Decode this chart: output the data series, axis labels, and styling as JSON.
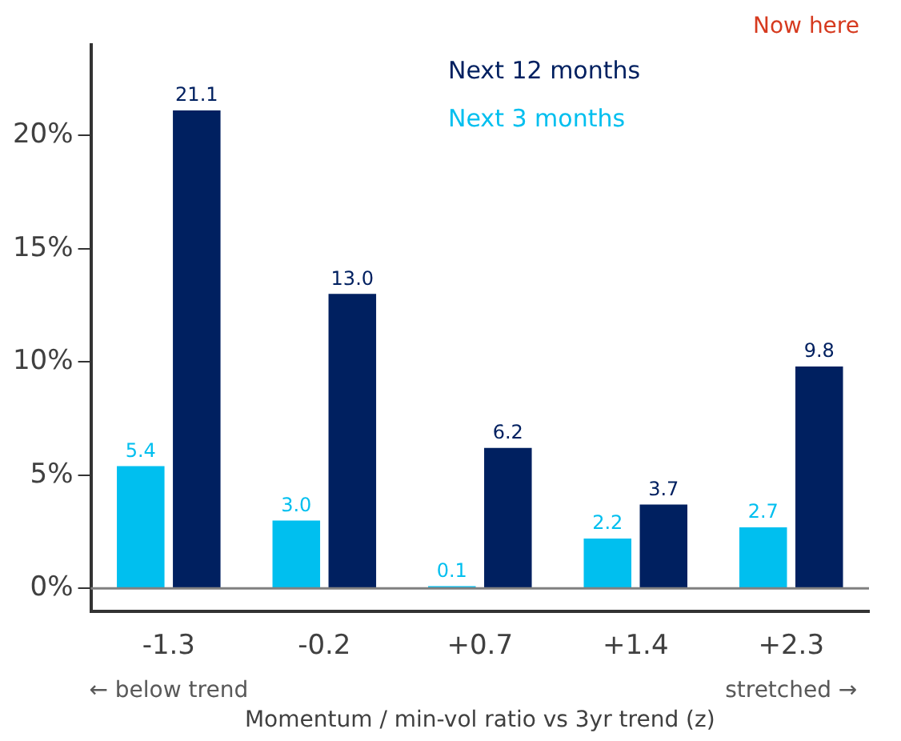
{
  "chart_data": {
    "type": "bar",
    "xlabel": "Momentum / min-vol ratio vs 3yr trend (z)",
    "categories": [
      "-1.3",
      "-0.2",
      "+0.7",
      "+1.4",
      "+2.3"
    ],
    "series": [
      {
        "name": "Next 3 months",
        "color": "#00bfef",
        "values": [
          5.4,
          3.0,
          0.1,
          2.2,
          2.7
        ],
        "value_labels": [
          "5.4",
          "3.0",
          "0.1",
          "2.2",
          "2.7"
        ]
      },
      {
        "name": "Next 12 months",
        "color": "#002060",
        "values": [
          21.1,
          13.0,
          6.2,
          3.7,
          9.8
        ],
        "value_labels": [
          "21.1",
          "13.0",
          "6.2",
          "3.7",
          "9.8"
        ]
      }
    ],
    "ylim": [
      -1,
      24
    ],
    "yticks": [
      {
        "value": 0,
        "label": "0%"
      },
      {
        "value": 5,
        "label": "5%"
      },
      {
        "value": 10,
        "label": "10%"
      },
      {
        "value": 15,
        "label": "15%"
      },
      {
        "value": 20,
        "label": "20%"
      }
    ],
    "ref_lines": [
      {
        "axis": "y",
        "value": 0,
        "label": null,
        "color": "#808080"
      }
    ],
    "annotations": [
      "Now here",
      "← below trend",
      "stretched →"
    ],
    "grid": false,
    "legend": "top"
  }
}
